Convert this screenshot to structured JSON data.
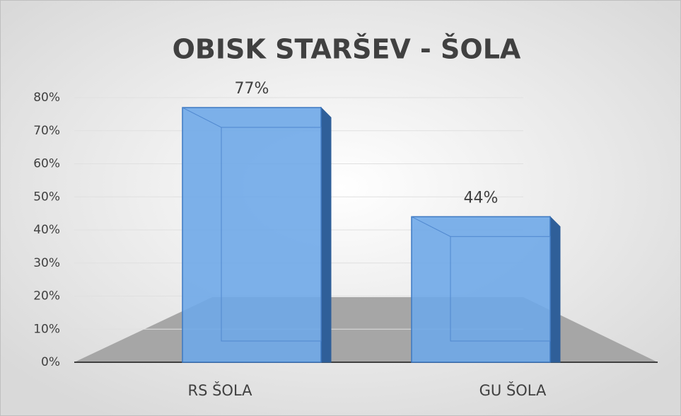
{
  "chart_data": {
    "type": "bar",
    "title": "OBISK STARŠEV - ŠOLA",
    "categories": [
      "RS ŠOLA",
      "GU ŠOLA"
    ],
    "values": [
      77,
      44
    ],
    "value_labels": [
      "77%",
      "44%"
    ],
    "color": "#6fa8e8",
    "ylim": [
      0,
      80
    ],
    "yticks": [
      {
        "value": 0,
        "label": "0%"
      },
      {
        "value": 10,
        "label": "10%"
      },
      {
        "value": 20,
        "label": "20%"
      },
      {
        "value": 30,
        "label": "30%"
      },
      {
        "value": 40,
        "label": "40%"
      },
      {
        "value": 50,
        "label": "50%"
      },
      {
        "value": 60,
        "label": "60%"
      },
      {
        "value": 70,
        "label": "70%"
      },
      {
        "value": 80,
        "label": "80%"
      }
    ],
    "grid": true
  }
}
